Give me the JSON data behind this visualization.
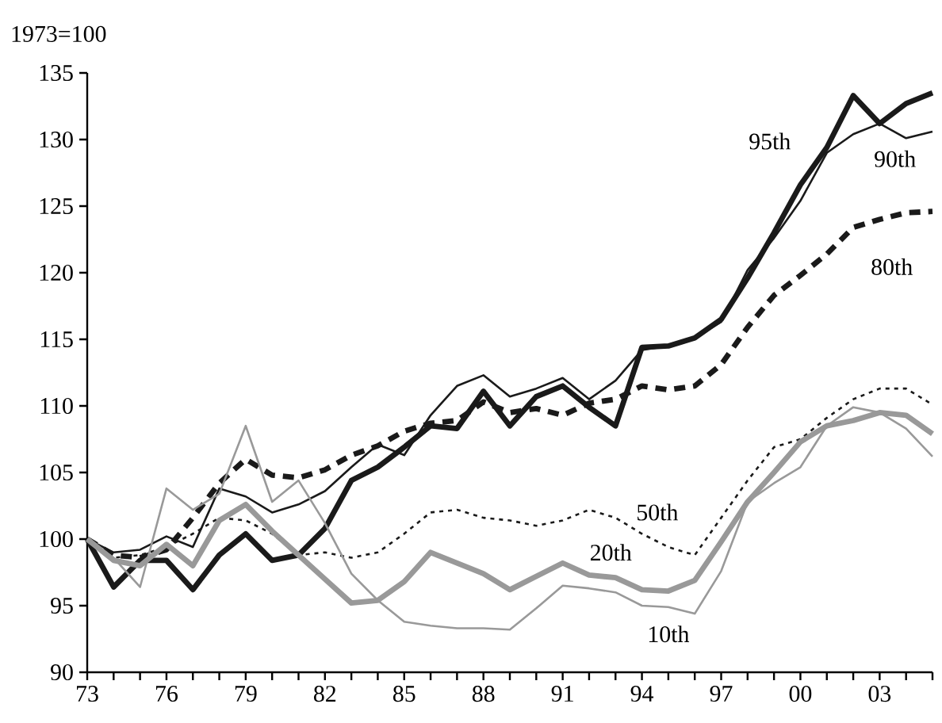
{
  "chart_data": {
    "type": "line",
    "ylabel": "1973=100",
    "x": [
      1973,
      1974,
      1975,
      1976,
      1977,
      1978,
      1979,
      1980,
      1981,
      1982,
      1983,
      1984,
      1985,
      1986,
      1987,
      1988,
      1989,
      1990,
      1991,
      1992,
      1993,
      1994,
      1995,
      1996,
      1997,
      1998,
      1999,
      2000,
      2001,
      2002,
      2003,
      2004,
      2005
    ],
    "xlim": [
      1973,
      2005
    ],
    "xticks": [
      {
        "value": 1973,
        "label": "73"
      },
      {
        "value": 1974,
        "label": null
      },
      {
        "value": 1975,
        "label": null
      },
      {
        "value": 1976,
        "label": "76"
      },
      {
        "value": 1977,
        "label": null
      },
      {
        "value": 1978,
        "label": null
      },
      {
        "value": 1979,
        "label": "79"
      },
      {
        "value": 1980,
        "label": null
      },
      {
        "value": 1981,
        "label": null
      },
      {
        "value": 1982,
        "label": "82"
      },
      {
        "value": 1983,
        "label": null
      },
      {
        "value": 1984,
        "label": null
      },
      {
        "value": 1985,
        "label": "85"
      },
      {
        "value": 1986,
        "label": null
      },
      {
        "value": 1987,
        "label": null
      },
      {
        "value": 1988,
        "label": "88"
      },
      {
        "value": 1989,
        "label": null
      },
      {
        "value": 1990,
        "label": null
      },
      {
        "value": 1991,
        "label": "91"
      },
      {
        "value": 1992,
        "label": null
      },
      {
        "value": 1993,
        "label": null
      },
      {
        "value": 1994,
        "label": "94"
      },
      {
        "value": 1995,
        "label": null
      },
      {
        "value": 1996,
        "label": null
      },
      {
        "value": 1997,
        "label": "97"
      },
      {
        "value": 1998,
        "label": null
      },
      {
        "value": 1999,
        "label": null
      },
      {
        "value": 2000,
        "label": "00"
      },
      {
        "value": 2001,
        "label": null
      },
      {
        "value": 2002,
        "label": null
      },
      {
        "value": 2003,
        "label": "03"
      },
      {
        "value": 2004,
        "label": null
      },
      {
        "value": 2005,
        "label": null
      }
    ],
    "ylim": [
      90,
      135
    ],
    "yticks": [
      90,
      95,
      100,
      105,
      110,
      115,
      120,
      125,
      130,
      135
    ],
    "series": [
      {
        "name": "95th",
        "color": "#1a1a1a",
        "line_style": "solid",
        "values": [
          100,
          96.4,
          98.4,
          98.4,
          96.2,
          98.8,
          100.4,
          98.4,
          98.8,
          100.8,
          104.4,
          105.4,
          106.9,
          108.5,
          108.3,
          111.1,
          108.5,
          110.7,
          111.5,
          109.9,
          108.5,
          114.4,
          114.5,
          115.1,
          116.5,
          119.6,
          123.0,
          126.6,
          129.4,
          133.3,
          131.2,
          132.7,
          133.5
        ]
      },
      {
        "name": "90th",
        "color": "#1a1a1a",
        "line_style": "solid",
        "values": [
          100,
          99.0,
          99.2,
          100.2,
          99.4,
          103.8,
          103.2,
          102.0,
          102.6,
          103.6,
          105.4,
          107.1,
          106.3,
          109.3,
          111.5,
          112.3,
          110.7,
          111.3,
          112.1,
          110.5,
          111.9,
          114.2,
          114.5,
          115.1,
          116.3,
          120.2,
          122.6,
          125.4,
          129.0,
          130.4,
          131.2,
          130.1,
          130.6
        ]
      },
      {
        "name": "80th",
        "color": "#1a1a1a",
        "line_style": "dashed",
        "values": [
          100,
          98.8,
          98.6,
          99.2,
          101.6,
          104.2,
          106.0,
          104.8,
          104.6,
          105.2,
          106.3,
          107.0,
          108.1,
          108.7,
          108.9,
          110.3,
          109.5,
          109.8,
          109.3,
          110.2,
          110.5,
          111.5,
          111.2,
          111.5,
          113.1,
          115.9,
          118.3,
          119.8,
          121.4,
          123.4,
          124.0,
          124.5,
          124.6
        ]
      },
      {
        "name": "50th",
        "color": "#1a1a1a",
        "line_style": "dotted",
        "values": [
          100,
          98.6,
          98.8,
          99.4,
          100.4,
          101.6,
          101.4,
          100.4,
          98.8,
          99.0,
          98.6,
          99.0,
          100.4,
          102.0,
          102.2,
          101.6,
          101.4,
          101.0,
          101.4,
          102.2,
          101.6,
          100.4,
          99.4,
          98.8,
          101.6,
          104.4,
          106.9,
          107.5,
          109.1,
          110.5,
          111.3,
          111.3,
          110.1
        ]
      },
      {
        "name": "20th",
        "color": "#999999",
        "line_style": "solid",
        "values": [
          100,
          98.4,
          98.0,
          99.6,
          98.0,
          101.4,
          102.6,
          100.6,
          98.8,
          97.0,
          95.2,
          95.4,
          96.8,
          99.0,
          98.2,
          97.4,
          96.2,
          97.2,
          98.2,
          97.3,
          97.1,
          96.2,
          96.1,
          96.9,
          99.8,
          102.8,
          105.0,
          107.3,
          108.5,
          108.9,
          109.5,
          109.3,
          107.9
        ]
      },
      {
        "name": "10th",
        "color": "#999999",
        "line_style": "solid",
        "values": [
          100,
          98.6,
          96.4,
          103.8,
          102.2,
          103.4,
          108.5,
          102.8,
          104.4,
          101.2,
          97.4,
          95.4,
          93.8,
          93.5,
          93.3,
          93.3,
          93.2,
          94.8,
          96.5,
          96.3,
          96.0,
          95.0,
          94.9,
          94.4,
          97.6,
          102.8,
          104.2,
          105.4,
          108.5,
          109.9,
          109.5,
          108.3,
          106.2
        ]
      }
    ]
  }
}
